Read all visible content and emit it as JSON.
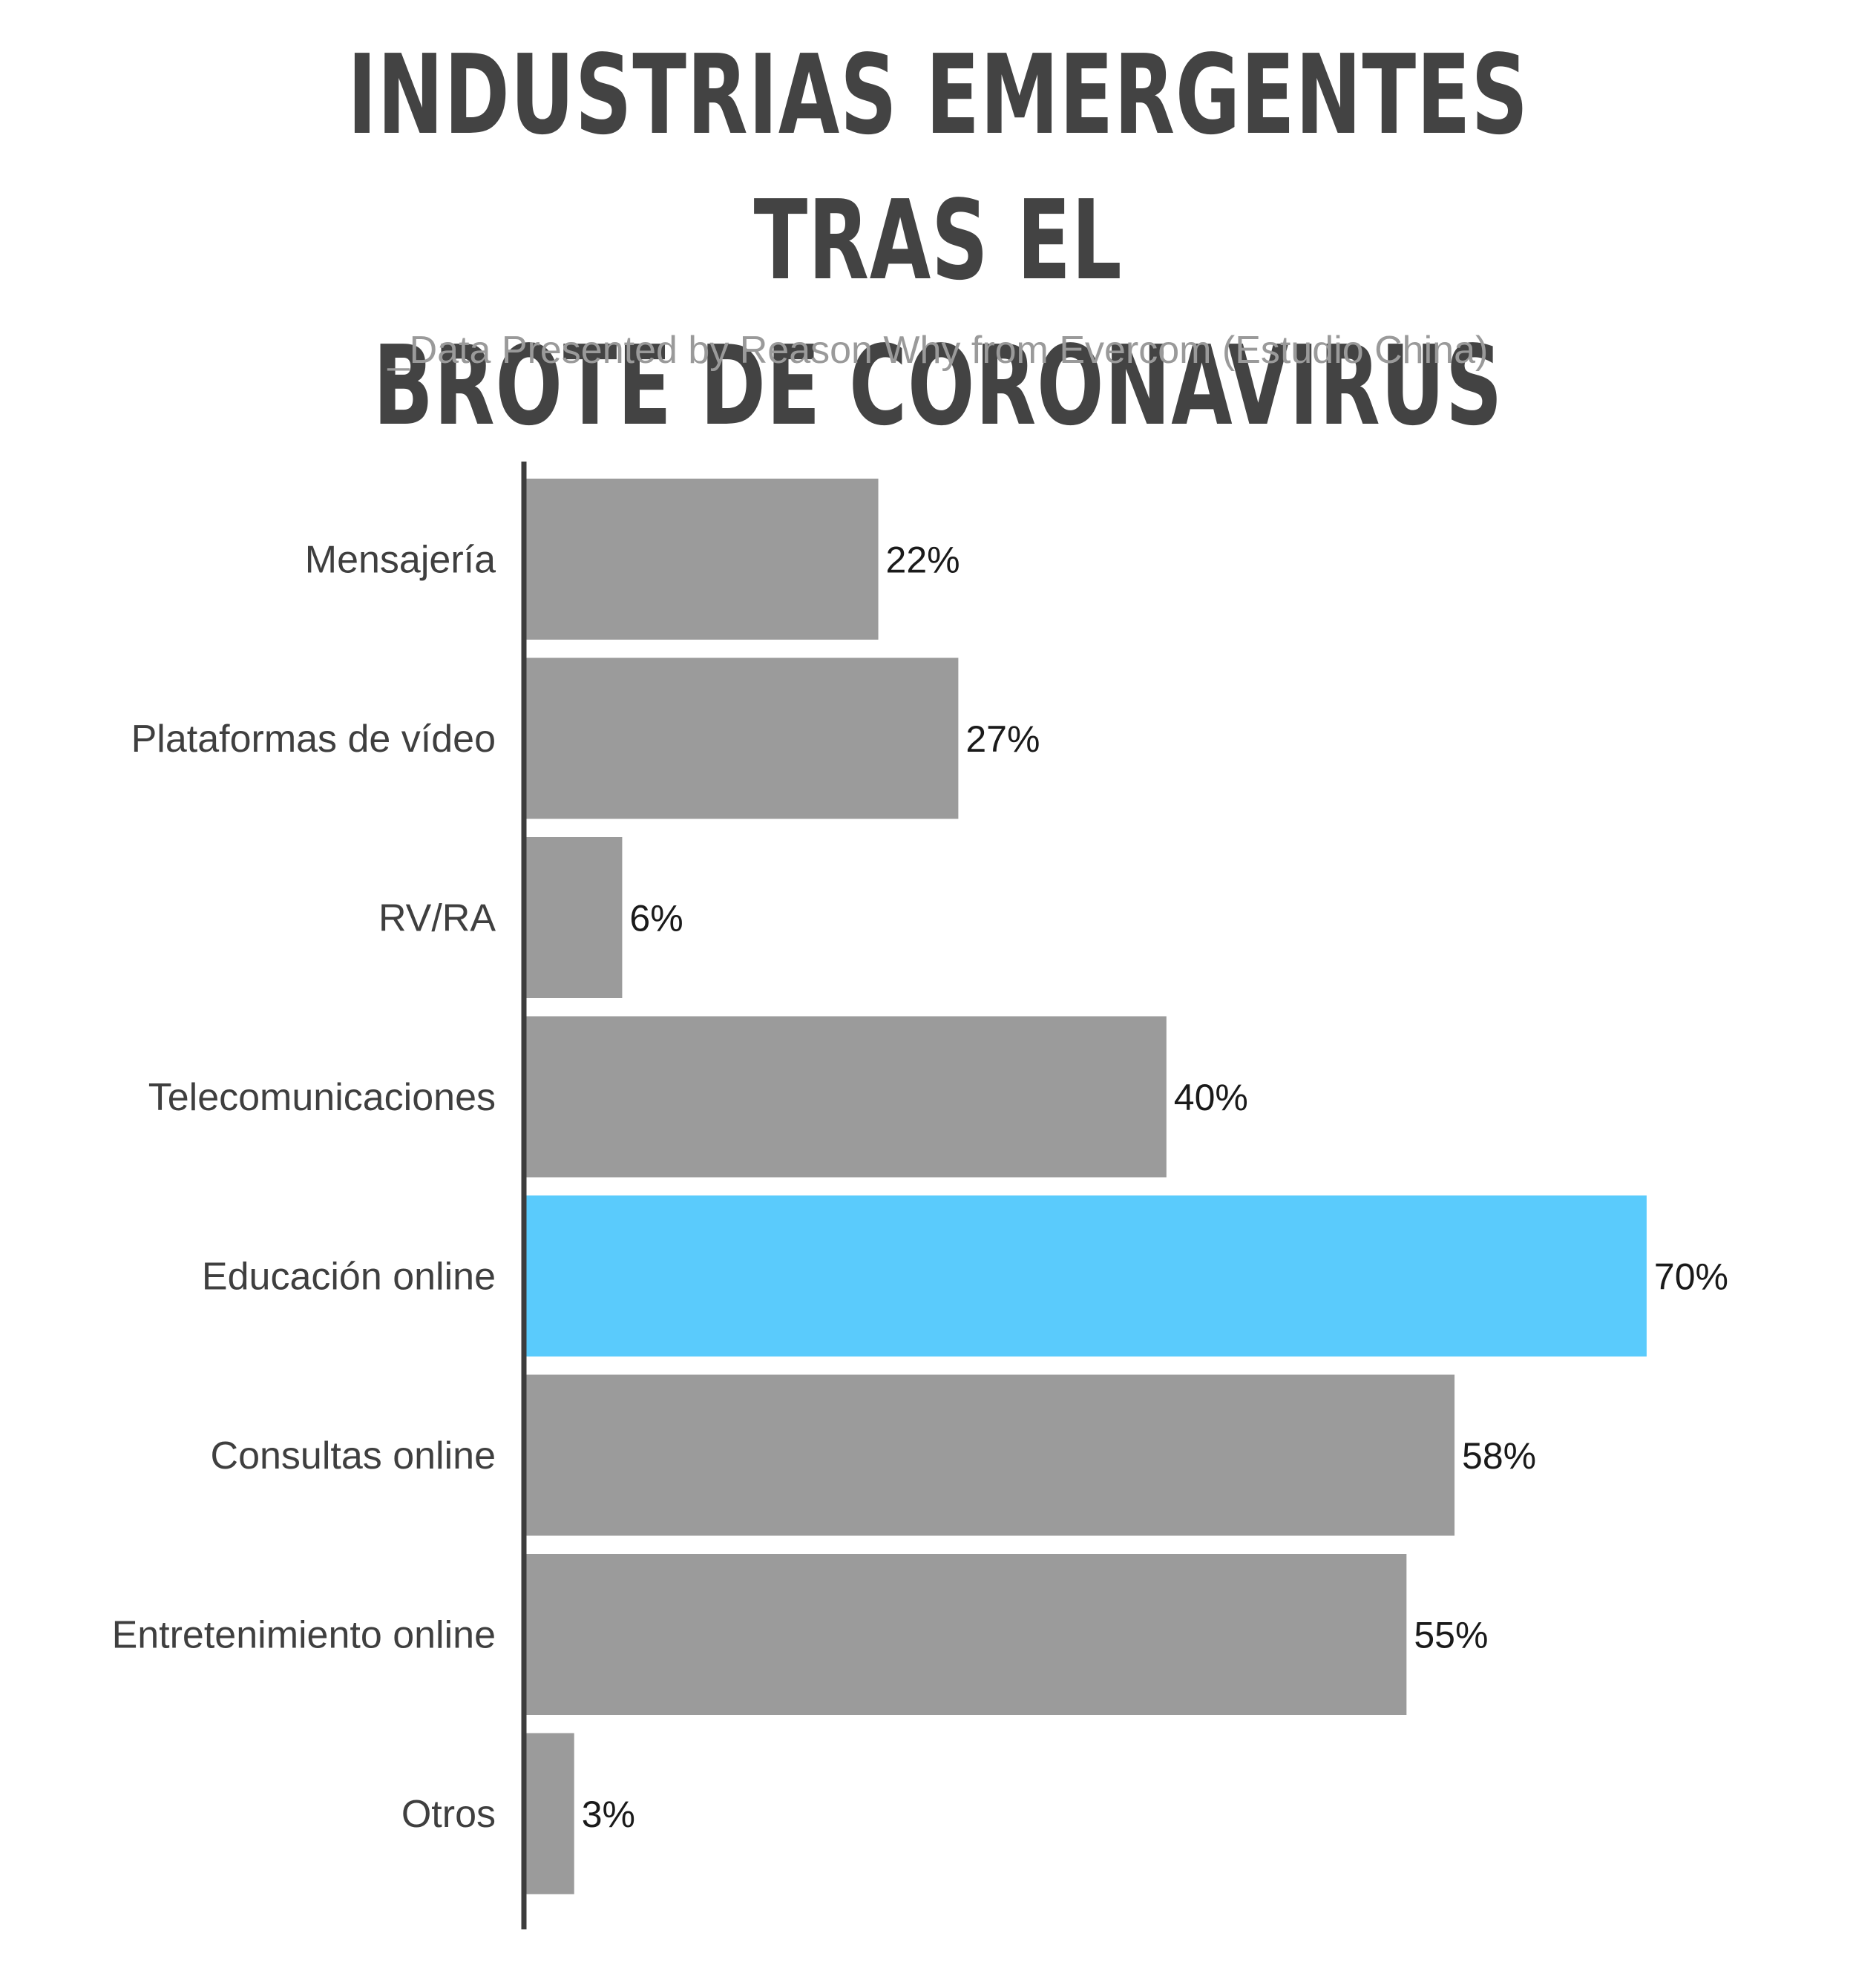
{
  "title_line1": "INDUSTRIAS EMERGENTES TRAS EL",
  "title_line2": "BROTE DE CORONAVIRUS",
  "subtitle": "_Data Presented by Reason Why from Evercom (Estudio China)",
  "chart_data": {
    "type": "bar",
    "orientation": "horizontal",
    "title": "INDUSTRIAS EMERGENTES TRAS EL BROTE DE CORONAVIRUS",
    "subtitle": "_Data Presented by Reason Why from Evercom (Estudio China)",
    "categories": [
      "Mensajería",
      "Plataformas de vídeo",
      "RV/RA",
      "Telecomunicaciones",
      "Educación online",
      "Consultas online",
      "Entretenimiento online",
      "Otros"
    ],
    "values": [
      22,
      27,
      6,
      40,
      70,
      58,
      55,
      3
    ],
    "value_labels": [
      "22%",
      "27%",
      "6%",
      "40%",
      "70%",
      "58%",
      "55%",
      "3%"
    ],
    "unit": "%",
    "xlim": [
      0,
      70
    ],
    "highlight_index": 4,
    "colors": {
      "bar": "#9b9b9b",
      "highlight": "#5acbfc",
      "axis": "#3d3d3d"
    },
    "grid": false,
    "legend": "none"
  }
}
